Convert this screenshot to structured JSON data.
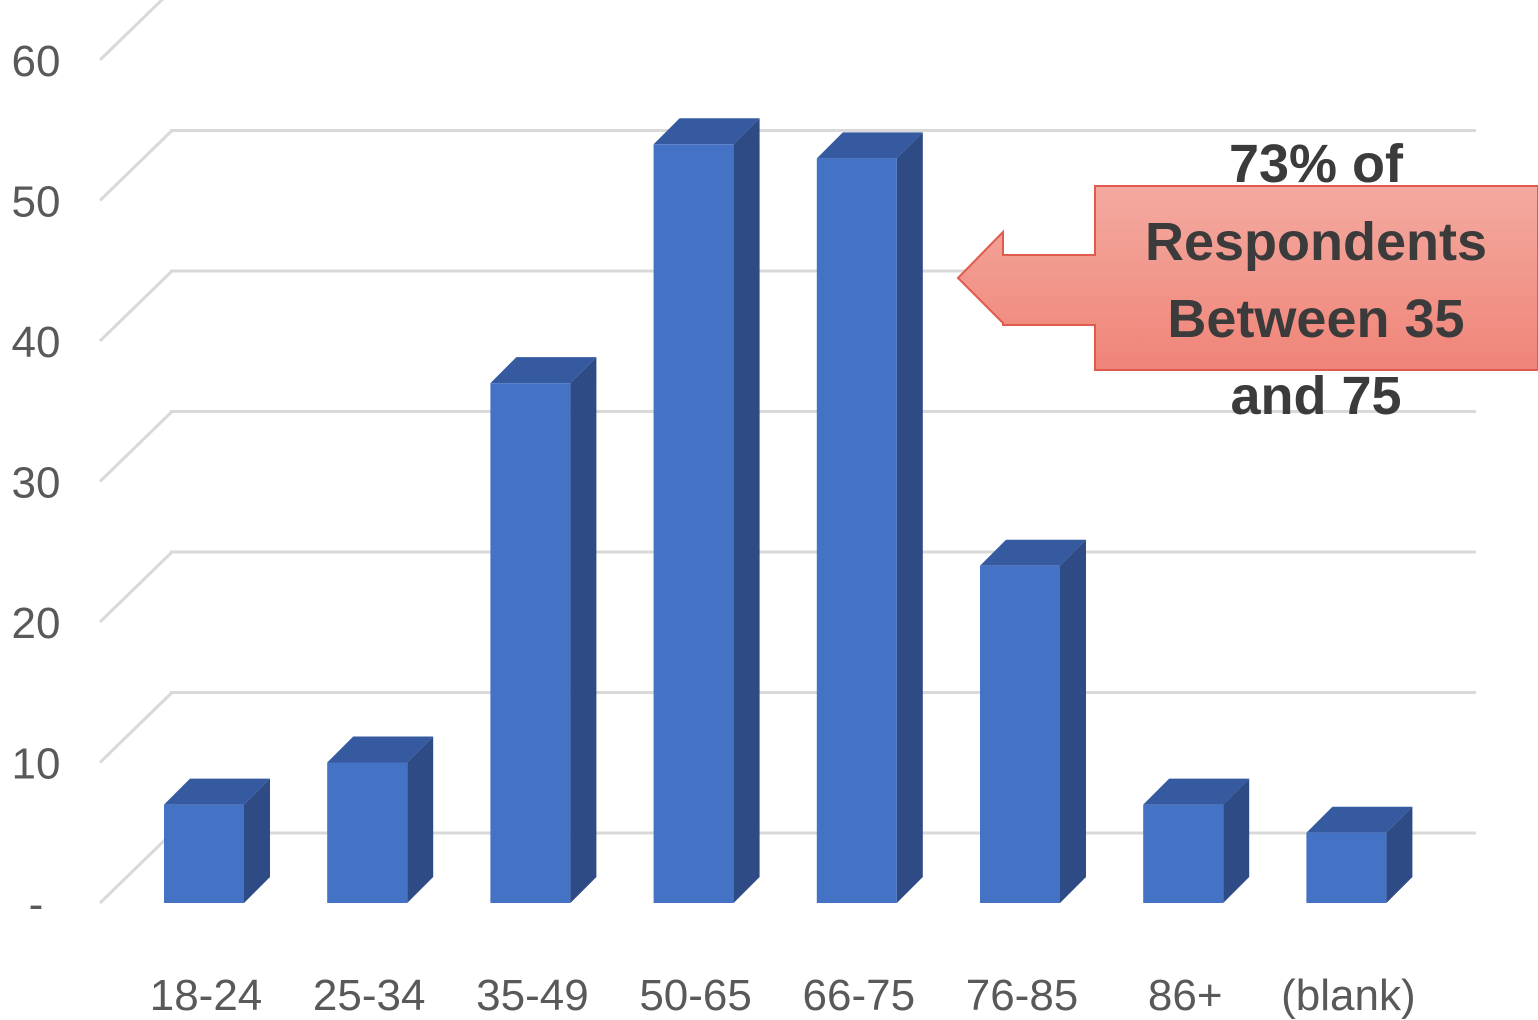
{
  "chart_data": {
    "type": "bar",
    "categories": [
      "18-24",
      "25-34",
      "35-49",
      "50-65",
      "66-75",
      "76-85",
      "86+",
      "(blank)"
    ],
    "values": [
      7,
      10,
      37,
      54,
      53,
      24,
      7,
      5
    ],
    "ylim": [
      0,
      60
    ],
    "yticks": [
      0,
      10,
      20,
      30,
      40,
      50,
      60
    ],
    "ytick_labels": [
      "-",
      "10",
      "20",
      "30",
      "40",
      "50",
      "60"
    ],
    "grid": true,
    "title": "",
    "xlabel": "",
    "ylabel": "",
    "annotation": {
      "lines": [
        "73% of",
        "Respondents",
        "Between 35",
        "and 75"
      ],
      "points_to": "66-75"
    }
  },
  "colors": {
    "bar_front": "#4472c4",
    "bar_side": "#2e4b86",
    "bar_top": "#355a9f",
    "grid": "#d9d9d9",
    "text": "#595959",
    "callout_fill_top": "#f4aaa0",
    "callout_fill_bottom": "#f08478",
    "callout_stroke": "#e05a4e",
    "annotation_text": "#3b3b3b"
  }
}
